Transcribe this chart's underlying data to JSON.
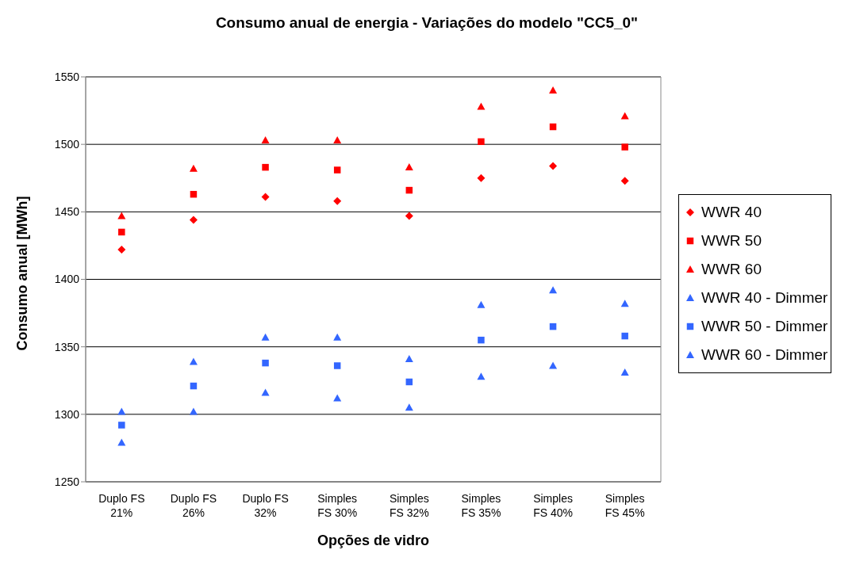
{
  "chart_data": {
    "type": "scatter",
    "title": "Consumo anual de energia - Variações do modelo \"CC5_0\"",
    "xlabel": "Opções de vidro",
    "ylabel": "Consumo anual [MWh]",
    "categories": [
      "Duplo FS\n21%",
      "Duplo FS\n26%",
      "Duplo FS\n32%",
      "Simples\nFS 30%",
      "Simples\nFS 32%",
      "Simples\nFS 35%",
      "Simples\nFS 40%",
      "Simples\nFS 45%"
    ],
    "ylim": [
      1250,
      1550
    ],
    "yticks": [
      1250,
      1300,
      1350,
      1400,
      1450,
      1500,
      1550
    ],
    "grid": "y",
    "legend": "right",
    "series": [
      {
        "name": "WWR 40",
        "color": "#ff0000",
        "marker": "diamond",
        "values": [
          1422,
          1444,
          1461,
          1458,
          1447,
          1475,
          1484,
          1473
        ]
      },
      {
        "name": "WWR 50",
        "color": "#ff0000",
        "marker": "square",
        "values": [
          1435,
          1463,
          1483,
          1481,
          1466,
          1502,
          1513,
          1498
        ]
      },
      {
        "name": "WWR 60",
        "color": "#ff0000",
        "marker": "triangle",
        "values": [
          1447,
          1482,
          1503,
          1503,
          1483,
          1528,
          1540,
          1521
        ]
      },
      {
        "name": "WWR 40 - Dimmer",
        "color": "#3366ff",
        "marker": "triangle",
        "values": [
          1279,
          1302,
          1316,
          1312,
          1305,
          1328,
          1336,
          1331
        ]
      },
      {
        "name": "WWR 50 - Dimmer",
        "color": "#3366ff",
        "marker": "square",
        "values": [
          1292,
          1321,
          1338,
          1336,
          1324,
          1355,
          1365,
          1358
        ]
      },
      {
        "name": "WWR 60 - Dimmer",
        "color": "#3366ff",
        "marker": "triangle",
        "values": [
          1302,
          1339,
          1357,
          1357,
          1341,
          1381,
          1392,
          1382
        ]
      }
    ]
  }
}
